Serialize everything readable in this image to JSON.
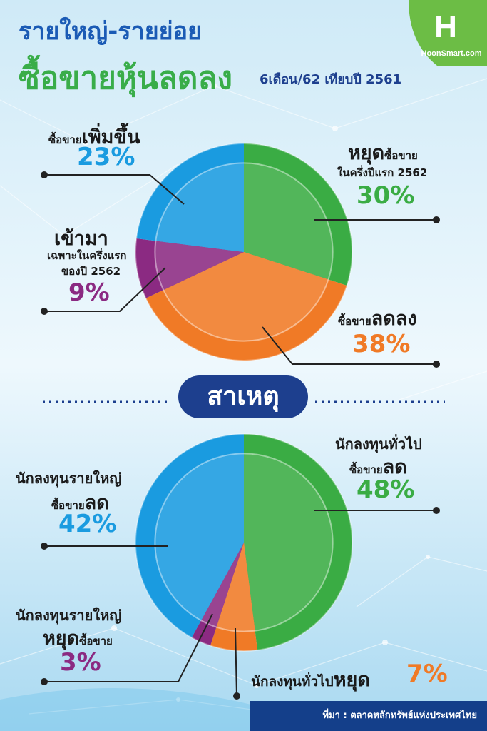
{
  "header": {
    "title_line1": "รายใหญ่-รายย่อย",
    "title_line2": "ซื้อขายหุ้นลดลง",
    "subtitle": "6เดือน/62 เทียบปี 2561",
    "brand": "HoonSmart.com",
    "brand_logo_letter": "H"
  },
  "section_label": "สาเหตุ",
  "footer": {
    "source": "ที่มา : ตลาดหลักทรัพย์แห่งประเทศไทย"
  },
  "labels1": {
    "inc_pre": "ซื้อขาย",
    "inc_big": "เพิ่มขึ้น",
    "stop_big": "หยุด",
    "stop_post": "ซื้อขาย",
    "stop_line2": "ในครึ่งปีแรก 2562",
    "new_big": "เข้ามา",
    "new_line2": "เฉพาะในครึ่งแรก",
    "new_line3": "ของปี 2562",
    "dec_pre": "ซื้อขาย",
    "dec_big": "ลดลง"
  },
  "labels2": {
    "retail_dec_line1": "นักลงทุนทั่วไป",
    "retail_dec_pre": "ซื้อขาย",
    "retail_dec_big": "ลด",
    "inst_dec_line1": "นักลงทุนรายใหญ่",
    "inst_dec_pre": "ซื้อขาย",
    "inst_dec_big": "ลด",
    "inst_stop_line1": "นักลงทุนรายใหญ่",
    "inst_stop_big": "หยุด",
    "inst_stop_post": "ซื้อขาย",
    "retail_stop_pre": "นักลงทุนทั่วไป",
    "retail_stop_big": "หยุด"
  },
  "colors": {
    "green": "#3aac44",
    "orange": "#f07a26",
    "blue": "#1a9be0",
    "purple": "#8b2a82",
    "navy": "#1d3f8e"
  },
  "chart_data": [
    {
      "type": "pie",
      "title": "",
      "slices": [
        {
          "label": "หยุดซื้อขายในครึ่งปีแรก 2562",
          "value": 30,
          "display": "30%",
          "color": "#3aac44"
        },
        {
          "label": "ซื้อขายลดลง",
          "value": 38,
          "display": "38%",
          "color": "#f07a26"
        },
        {
          "label": "เข้ามาเฉพาะในครึ่งแรกของปี 2562",
          "value": 9,
          "display": "9%",
          "color": "#8b2a82"
        },
        {
          "label": "ซื้อขายเพิ่มขึ้น",
          "value": 23,
          "display": "23%",
          "color": "#1a9be0"
        }
      ]
    },
    {
      "type": "pie",
      "title": "",
      "slices": [
        {
          "label": "นักลงทุนทั่วไปซื้อขายลด",
          "value": 48,
          "display": "48%",
          "color": "#3aac44"
        },
        {
          "label": "นักลงทุนทั่วไปหยุด",
          "value": 7,
          "display": "7%",
          "color": "#f07a26"
        },
        {
          "label": "นักลงทุนรายใหญ่หยุดซื้อขาย",
          "value": 3,
          "display": "3%",
          "color": "#8b2a82"
        },
        {
          "label": "นักลงทุนรายใหญ่ซื้อขายลด",
          "value": 42,
          "display": "42%",
          "color": "#1a9be0"
        }
      ]
    }
  ]
}
